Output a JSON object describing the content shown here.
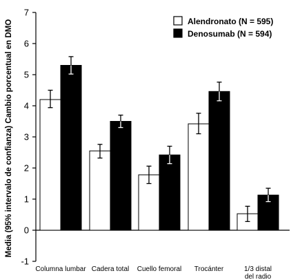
{
  "chart_data": {
    "type": "bar",
    "ylabel": "Media (95% intervalo de confianza) Cambio porcentual en DMO",
    "xlabel": "",
    "ylim": [
      -1,
      7
    ],
    "yticks": [
      -1,
      0,
      1,
      2,
      3,
      4,
      5,
      6,
      7
    ],
    "categories": [
      [
        "Columna lumbar"
      ],
      [
        "Cadera total"
      ],
      [
        "Cuello femoral"
      ],
      [
        "Trocánter"
      ],
      [
        "1/3 distal",
        "del radio"
      ]
    ],
    "series": [
      {
        "name": "Alendronato (N = 595)",
        "color": "#ffffff",
        "values": [
          4.2,
          2.55,
          1.78,
          3.42,
          0.53
        ],
        "ci_low": [
          3.94,
          2.32,
          1.5,
          3.1,
          0.28
        ],
        "ci_high": [
          4.5,
          2.76,
          2.06,
          3.76,
          0.77
        ]
      },
      {
        "name": "Denosumab (N = 594)",
        "color": "#000000",
        "values": [
          5.3,
          3.5,
          2.42,
          4.46,
          1.13
        ],
        "ci_low": [
          5.02,
          3.3,
          2.14,
          4.16,
          0.92
        ],
        "ci_high": [
          5.58,
          3.7,
          2.7,
          4.76,
          1.35
        ]
      }
    ],
    "legend_position": "top-right",
    "grid": false
  }
}
